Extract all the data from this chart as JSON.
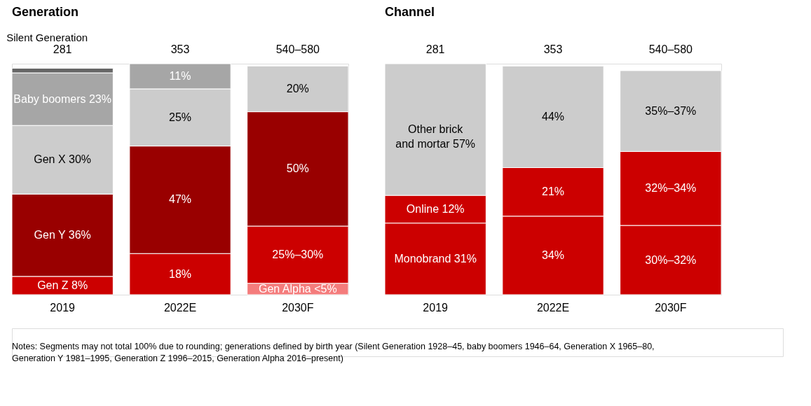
{
  "chart_data": [
    {
      "type": "bar",
      "title": "Generation",
      "stacked": true,
      "tick_labels": "x",
      "categories": [
        "2019",
        "2022E",
        "2030F"
      ],
      "series": [
        {
          "color": "#f47c7c",
          "values": [
            null,
            null,
            5
          ],
          "value_labels": [
            null,
            null,
            "Gen Alpha <5%"
          ]
        },
        {
          "color": "#cc0000",
          "values": [
            8,
            18,
            25
          ],
          "value_labels": [
            "Gen Z 8%",
            "18%",
            "25%–30%"
          ]
        },
        {
          "color": "#990000",
          "values": [
            36,
            47,
            50
          ],
          "value_labels": [
            "Gen Y 36%",
            "47%",
            "50%"
          ]
        },
        {
          "color": "#cccccc",
          "values": [
            30,
            25,
            20
          ],
          "value_labels": [
            "Gen X 30%",
            "25%",
            "20%"
          ]
        },
        {
          "color": "#a6a6a6",
          "values": [
            23,
            11,
            null
          ],
          "value_labels": [
            "Baby boomers 23%",
            "11%",
            null
          ]
        },
        {
          "color": "#666666",
          "values": [
            2,
            null,
            null
          ],
          "value_labels": [
            null,
            null,
            null
          ]
        }
      ],
      "annotations": [
        {
          "text": "Silent Generation",
          "x": "2019",
          "y": 99
        },
        "281",
        "353",
        "540–580",
        "Notes: Segments may not total 100% due to rounding; generations defined by birth year (Silent Generation 1928–45, baby boomers 1946–64, Generation X 1965–80,\nGeneration Y 1981–1995, Generation Z 1996–2015, Generation Alpha 2016–present)"
      ]
    },
    {
      "type": "bar",
      "title": "Channel",
      "stacked": true,
      "tick_labels": "x",
      "categories": [
        "2019",
        "2022E",
        "2030F"
      ],
      "series": [
        {
          "color": "#cc0000",
          "values": [
            31,
            34,
            30
          ],
          "value_labels": [
            "Monobrand 31%",
            "34%",
            "30%–32%"
          ]
        },
        {
          "color": "#cc0000",
          "values": [
            12,
            21,
            32
          ],
          "value_labels": [
            "Online 12%",
            "21%",
            "32%–34%"
          ]
        },
        {
          "color": "#cccccc",
          "values": [
            57,
            44,
            35
          ],
          "value_labels": [
            "Other brick\nand mortar 57%",
            "44%",
            "35%–37%"
          ]
        }
      ],
      "annotations": [
        "281",
        "353",
        "540–580"
      ]
    }
  ]
}
